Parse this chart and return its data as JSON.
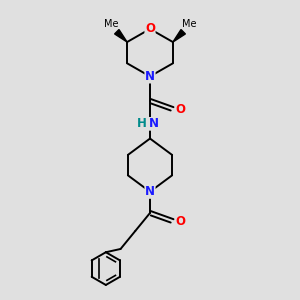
{
  "bg_color": "#e0e0e0",
  "bond_color": "#000000",
  "N_color": "#1a1aff",
  "O_color": "#ff0000",
  "NH_color": "#008b8b",
  "font_size": 8.5,
  "bond_width": 1.4,
  "xlim": [
    0.5,
    2.5
  ],
  "ylim": [
    -0.6,
    3.0
  ]
}
